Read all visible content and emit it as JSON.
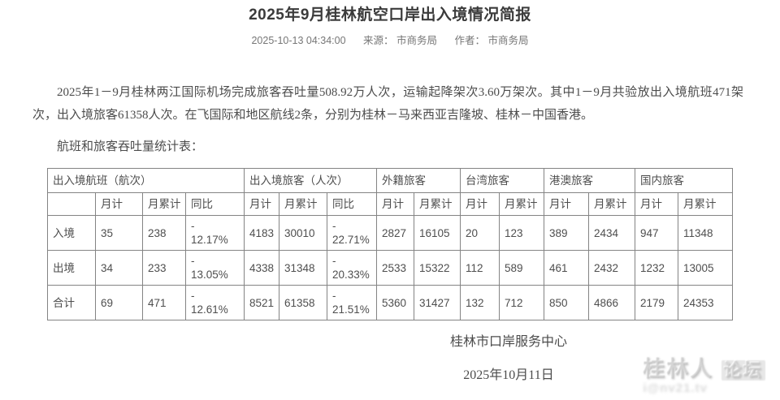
{
  "page": {
    "title": "2025年9月桂林航空口岸出入境情况简报",
    "meta": {
      "datetime": "2025-10-13 04:34:00",
      "source": "来源：  市商务局",
      "author": "作者：  市商务局"
    },
    "paragraph": "2025年1－9月桂林两江国际机场完成旅客吞吐量508.92万人次，运输起降架次3.60万架次。其中1－9月共验放出入境航班471架次，出入境旅客61358人次。在飞国际和地区航线2条，分别为桂林－马来西亚吉隆坡、桂林－中国香港。",
    "table_caption": "航班和旅客吞吐量统计表：",
    "footer": {
      "org": "桂林市口岸服务中心",
      "date": "2025年10月11日"
    },
    "watermark": {
      "line1": "桂林人",
      "line1b": "论坛",
      "line2": "i@nv21.tv"
    },
    "colors": {
      "title_text": "#3b3b3b",
      "body_text": "#4c4c4c",
      "meta_text": "#767676",
      "table_border": "#848484",
      "background": "#ffffff"
    }
  },
  "table": {
    "groups": [
      {
        "label": "出入境航班（航次）",
        "colspan": 4
      },
      {
        "label": "出入境旅客（人次）",
        "colspan": 3
      },
      {
        "label": "外籍旅客",
        "colspan": 2
      },
      {
        "label": "台湾旅客",
        "colspan": 2
      },
      {
        "label": "港澳旅客",
        "colspan": 2
      },
      {
        "label": "国内旅客",
        "colspan": 2
      }
    ],
    "subheaders": [
      "",
      "月计",
      "月累计",
      "同比",
      "月计",
      "月累计",
      "同比",
      "月计",
      "月累计",
      "月计",
      "月累计",
      "月计",
      "月累计",
      "月计",
      "月累计"
    ],
    "rows": [
      [
        "入境",
        "35",
        "238",
        "-\n12.17%",
        "4183",
        "30010",
        "-\n22.71%",
        "2827",
        "16105",
        "20",
        "123",
        "389",
        "2434",
        "947",
        "11348"
      ],
      [
        "出境",
        "34",
        "233",
        "-\n13.05%",
        "4338",
        "31348",
        "-\n20.33%",
        "2533",
        "15322",
        "112",
        "589",
        "461",
        "2432",
        "1232",
        "13005"
      ],
      [
        "合计",
        "69",
        "471",
        "-\n12.61%",
        "8521",
        "61358",
        "-\n21.51%",
        "5360",
        "31427",
        "132",
        "712",
        "850",
        "4866",
        "2179",
        "24353"
      ]
    ]
  }
}
